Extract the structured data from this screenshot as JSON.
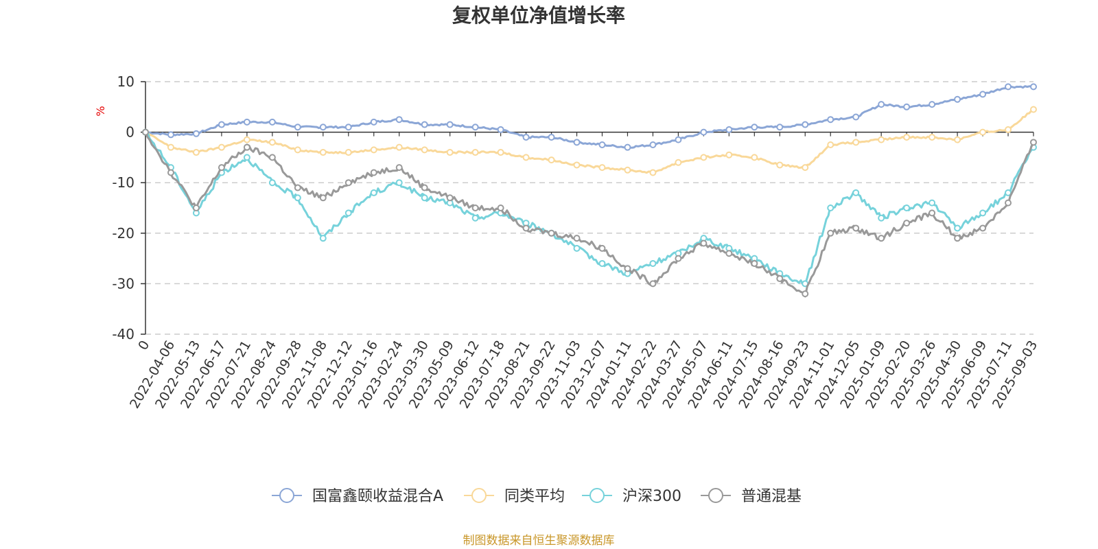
{
  "chart_data": {
    "type": "line",
    "title": "复权单位净值增长率",
    "ylabel": "%",
    "ylim": [
      -40,
      10
    ],
    "yticks": [
      10,
      0,
      -10,
      -20,
      -30,
      -40
    ],
    "grid": true,
    "legend_position": "bottom",
    "x": [
      "0",
      "2022-04-06",
      "2022-05-13",
      "2022-06-17",
      "2022-07-21",
      "2022-08-24",
      "2022-09-28",
      "2022-11-08",
      "2022-12-12",
      "2023-01-16",
      "2023-02-24",
      "2023-03-30",
      "2023-05-09",
      "2023-06-12",
      "2023-07-18",
      "2023-08-21",
      "2023-09-22",
      "2023-11-03",
      "2023-12-07",
      "2024-01-11",
      "2024-02-22",
      "2024-03-27",
      "2024-05-07",
      "2024-06-11",
      "2024-07-15",
      "2024-08-16",
      "2024-09-23",
      "2024-11-01",
      "2024-12-05",
      "2025-01-09",
      "2025-02-20",
      "2025-03-26",
      "2025-04-30",
      "2025-06-09",
      "2025-07-11",
      "2025-09-03"
    ],
    "series": [
      {
        "name": "国富鑫颐收益混合A",
        "color": "#8ba6d6",
        "values": [
          0,
          -0.5,
          -0.3,
          1.5,
          2,
          2,
          1,
          1,
          1,
          2,
          2.5,
          1.5,
          1.5,
          1,
          0.5,
          -1,
          -1,
          -2,
          -2.5,
          -3,
          -2.5,
          -1.5,
          0,
          0.5,
          1,
          1,
          1.5,
          2.5,
          3,
          5.5,
          5,
          5.5,
          6.5,
          7.5,
          9,
          9
        ]
      },
      {
        "name": "同类平均",
        "color": "#f9d899",
        "values": [
          0,
          -3,
          -4,
          -3,
          -1.5,
          -2,
          -3.5,
          -4,
          -4,
          -3.5,
          -3,
          -3.5,
          -4,
          -4,
          -4,
          -5,
          -5.5,
          -6.5,
          -7,
          -7.5,
          -8,
          -6,
          -5,
          -4.5,
          -5,
          -6.5,
          -7,
          -2.5,
          -2,
          -1.5,
          -1,
          -1,
          -1.5,
          0,
          0.5,
          4.5
        ]
      },
      {
        "name": "沪深300",
        "color": "#76d2db",
        "values": [
          0,
          -7,
          -16,
          -8,
          -5,
          -10,
          -13,
          -21,
          -16,
          -12,
          -10,
          -13,
          -14,
          -17,
          -16,
          -18,
          -20,
          -23,
          -26,
          -28,
          -26,
          -24,
          -21,
          -23,
          -25,
          -28,
          -30,
          -15,
          -12,
          -17,
          -15,
          -14,
          -19,
          -16,
          -12,
          -3
        ]
      },
      {
        "name": "普通混基",
        "color": "#999999",
        "values": [
          0,
          -8,
          -15,
          -7,
          -3,
          -5,
          -11,
          -13,
          -10,
          -8,
          -7,
          -11,
          -13,
          -15,
          -15,
          -19,
          -20,
          -21,
          -23,
          -27,
          -30,
          -25,
          -22,
          -24,
          -26,
          -29,
          -32,
          -20,
          -19,
          -21,
          -18,
          -16,
          -21,
          -19,
          -14,
          -2
        ]
      }
    ]
  },
  "source_text": "制图数据来自恒生聚源数据库"
}
